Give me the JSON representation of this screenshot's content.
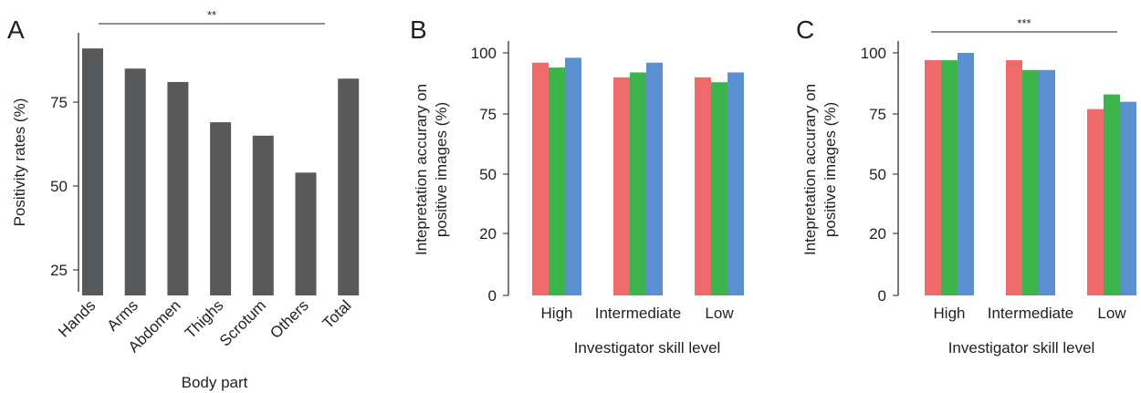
{
  "chart_data": [
    {
      "panel": "A",
      "type": "bar",
      "categories": [
        "Hands",
        "Arms",
        "Abdomen",
        "Thighs",
        "Scrotum",
        "Others",
        "Total"
      ],
      "values": [
        91,
        85,
        81,
        69,
        65,
        54,
        82
      ],
      "ylabel": "Positivity rates (%)",
      "xlabel": "Body part",
      "yticks": [
        "25",
        "50",
        "75"
      ],
      "significance": "**",
      "colors": [
        "#58595b"
      ]
    },
    {
      "panel": "B",
      "type": "bar",
      "categories": [
        "High",
        "Intermediate",
        "Low"
      ],
      "series": [
        {
          "values": [
            96,
            90,
            90
          ],
          "color": "#ef6b6b"
        },
        {
          "values": [
            94,
            92,
            88
          ],
          "color": "#3cb44b"
        },
        {
          "values": [
            98,
            96,
            92
          ],
          "color": "#5b8fd1"
        }
      ],
      "ylabel": [
        "Intepretation accurary on",
        "positive images (%)"
      ],
      "xlabel": "Investigator skill level",
      "yticks": [
        "0",
        "20",
        "50",
        "75",
        "100"
      ]
    },
    {
      "panel": "C",
      "type": "bar",
      "categories": [
        "High",
        "Intermediate",
        "Low"
      ],
      "series": [
        {
          "values": [
            97,
            97,
            77
          ],
          "color": "#ef6b6b"
        },
        {
          "values": [
            97,
            93,
            83
          ],
          "color": "#3cb44b"
        },
        {
          "values": [
            100,
            93,
            80
          ],
          "color": "#5b8fd1"
        }
      ],
      "ylabel": [
        "Intepretation accurary on",
        "positive images (%)"
      ],
      "xlabel": "Investigator skill level",
      "yticks": [
        "0",
        "20",
        "50",
        "75",
        "100"
      ],
      "significance": "***"
    }
  ]
}
